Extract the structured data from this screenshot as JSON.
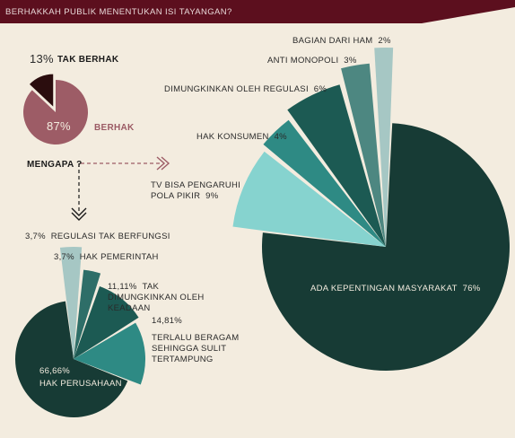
{
  "header": {
    "title": "BERHAKKAH PUBLIK MENENTUKAN ISI TAYANGAN?",
    "color": "#5c0f1e"
  },
  "why_label": "MENGAPA ?",
  "chart_data": [
    {
      "type": "pie",
      "title": "",
      "slices": [
        {
          "label": "TAK BERHAK",
          "pct_text": "13%",
          "value": 13,
          "color": "#2b0d0e"
        },
        {
          "label": "BERHAK",
          "pct_text": "87%",
          "value": 87,
          "color": "#9d5c66"
        }
      ]
    },
    {
      "type": "pie",
      "title": "",
      "slices": [
        {
          "label": "ADA KEPENTINGAN MASYARAKAT",
          "pct_text": "76%",
          "value": 76,
          "color": "#173b35"
        },
        {
          "label": "TV BISA PENGARUHI POLA PIKIR",
          "pct_text": "9%",
          "value": 9,
          "color": "#86d3cf"
        },
        {
          "label": "HAK KONSUMEN",
          "pct_text": "4%",
          "value": 4,
          "color": "#2e8a84"
        },
        {
          "label": "DIMUNGKINKAN OLEH REGULASI",
          "pct_text": "6%",
          "value": 6,
          "color": "#1c5a53"
        },
        {
          "label": "ANTI MONOPOLI",
          "pct_text": "3%",
          "value": 3,
          "color": "#4d8781"
        },
        {
          "label": "BAGIAN DARI HAM",
          "pct_text": "2%",
          "value": 2,
          "color": "#a6c7c4"
        }
      ]
    },
    {
      "type": "pie",
      "title": "",
      "slices": [
        {
          "label": "HAK PERUSAHAAN",
          "pct_text": "66,66%",
          "value": 66.66,
          "color": "#173b35"
        },
        {
          "label": "REGULASI TAK BERFUNGSI",
          "pct_text": "3,7%",
          "value": 3.7,
          "color": "#a6c7c4"
        },
        {
          "label": "HAK PEMERINTAH",
          "pct_text": "3,7%",
          "value": 3.7,
          "color": "#2e6e68"
        },
        {
          "label": "TAK DIMUNGKINKAN OLEH KEADAAN",
          "pct_text": "11,11%",
          "value": 11.11,
          "color": "#1c5a53"
        },
        {
          "label": "TERLALU BERAGAM SEHINGGA SULIT TERTAMPUNG",
          "pct_text": "14,81%",
          "value": 14.81,
          "color": "#2e8a84"
        }
      ]
    }
  ]
}
